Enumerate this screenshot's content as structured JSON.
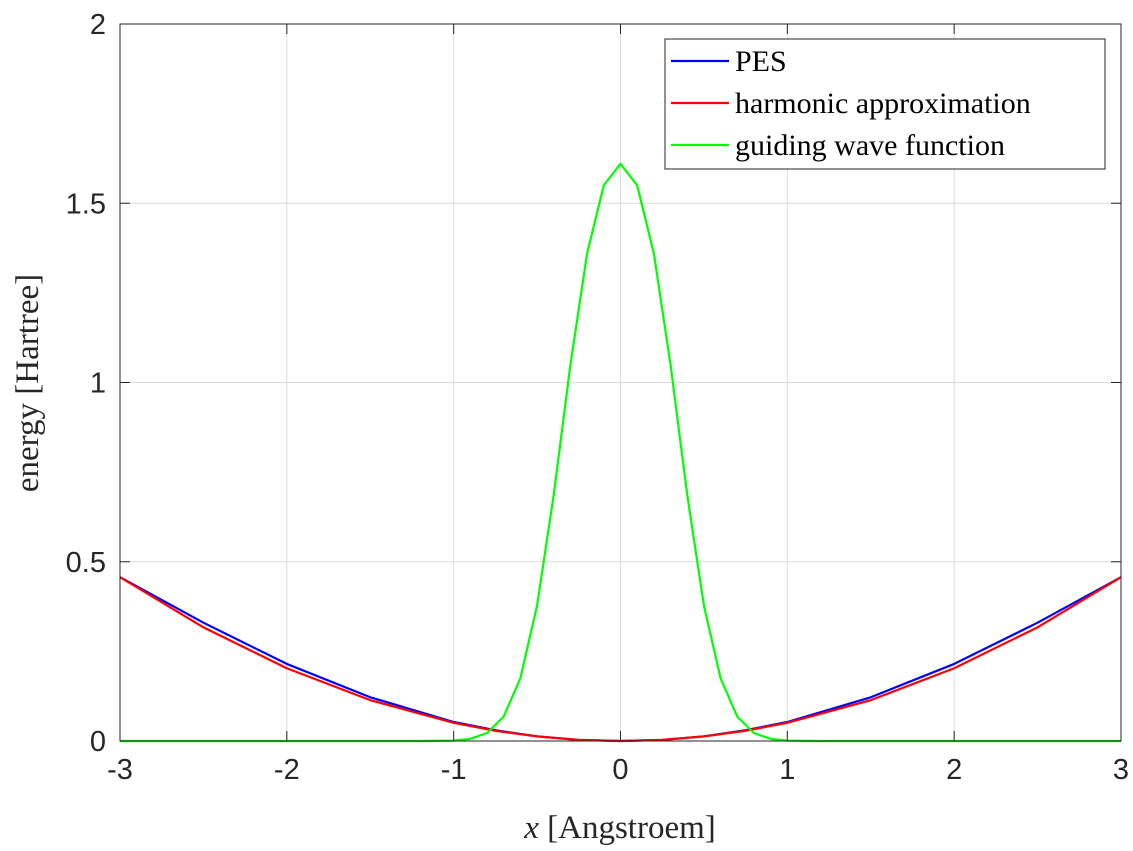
{
  "chart_data": {
    "type": "line",
    "xlabel_var": "x",
    "xlabel_rest": " [Angstroem]",
    "ylabel": "energy [Hartree]",
    "xlim": [
      -3,
      3
    ],
    "ylim": [
      0,
      2
    ],
    "xticks": [
      -3,
      -2,
      -1,
      0,
      1,
      2,
      3
    ],
    "xtick_labels": [
      "-3",
      "-2",
      "-1",
      "0",
      "1",
      "2",
      "3"
    ],
    "yticks": [
      0,
      0.5,
      1,
      1.5,
      2
    ],
    "ytick_labels": [
      "0",
      "0.5",
      "1",
      "1.5",
      "2"
    ],
    "grid": true,
    "legend_position": "top-right",
    "series": [
      {
        "name": "PES",
        "color": "#0000ff",
        "x": [
          -3.0,
          -2.5,
          -2.0,
          -1.5,
          -1.0,
          -0.75,
          -0.5,
          -0.25,
          0.0,
          0.25,
          0.5,
          0.75,
          1.0,
          1.5,
          2.0,
          2.5,
          3.0
        ],
        "y": [
          0.457,
          0.33,
          0.215,
          0.122,
          0.053,
          0.03,
          0.013,
          0.003,
          0.0,
          0.003,
          0.013,
          0.03,
          0.053,
          0.122,
          0.215,
          0.33,
          0.457
        ]
      },
      {
        "name": "harmonic approximation",
        "color": "#ff0000",
        "x": [
          -3.0,
          -2.5,
          -2.0,
          -1.5,
          -1.0,
          -0.75,
          -0.5,
          -0.25,
          0.0,
          0.25,
          0.5,
          0.75,
          1.0,
          1.5,
          2.0,
          2.5,
          3.0
        ],
        "y": [
          0.457,
          0.317,
          0.203,
          0.114,
          0.0508,
          0.0286,
          0.0127,
          0.0032,
          0.0,
          0.0032,
          0.0127,
          0.0286,
          0.0508,
          0.114,
          0.203,
          0.317,
          0.457
        ]
      },
      {
        "name": "guiding wave function",
        "color": "#00ff00",
        "x": [
          -3.0,
          -1.2,
          -1.0,
          -0.9,
          -0.8,
          -0.7,
          -0.6,
          -0.5,
          -0.4,
          -0.3,
          -0.2,
          -0.1,
          0.0,
          0.1,
          0.2,
          0.3,
          0.4,
          0.5,
          0.6,
          0.7,
          0.8,
          0.9,
          1.0,
          1.2,
          3.0
        ],
        "y": [
          0.0,
          0.0,
          0.001,
          0.006,
          0.022,
          0.068,
          0.175,
          0.378,
          0.687,
          1.05,
          1.36,
          1.55,
          1.61,
          1.55,
          1.36,
          1.05,
          0.687,
          0.378,
          0.175,
          0.068,
          0.022,
          0.006,
          0.001,
          0.0,
          0.0
        ]
      }
    ]
  }
}
